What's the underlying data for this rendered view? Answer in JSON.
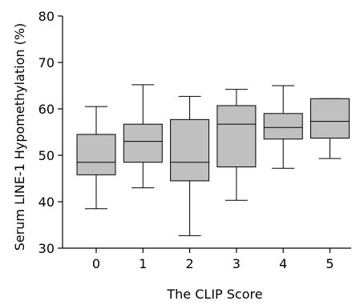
{
  "chart_data": {
    "type": "box",
    "title": "",
    "xlabel": "The CLIP Score",
    "ylabel": "Serum LINE-1 Hypomethylation (%)",
    "categories": [
      "0",
      "1",
      "2",
      "3",
      "4",
      "5"
    ],
    "boxes": [
      {
        "category": "0",
        "whisker_low": 38.5,
        "q1": 45.8,
        "median": 48.5,
        "q3": 54.5,
        "whisker_high": 60.5
      },
      {
        "category": "1",
        "whisker_low": 43.0,
        "q1": 48.5,
        "median": 53.0,
        "q3": 56.7,
        "whisker_high": 65.2
      },
      {
        "category": "2",
        "whisker_low": 32.7,
        "q1": 44.5,
        "median": 48.5,
        "q3": 57.7,
        "whisker_high": 62.7
      },
      {
        "category": "3",
        "whisker_low": 40.3,
        "q1": 47.5,
        "median": 56.7,
        "q3": 60.7,
        "whisker_high": 64.2
      },
      {
        "category": "4",
        "whisker_low": 47.2,
        "q1": 53.5,
        "median": 56.0,
        "q3": 59.0,
        "whisker_high": 65.0
      },
      {
        "category": "5",
        "whisker_low": 49.3,
        "q1": 53.7,
        "median": 57.3,
        "q3": 62.2,
        "whisker_high": 62.2
      }
    ],
    "y_ticks": [
      30,
      40,
      50,
      60,
      70,
      80
    ],
    "ylim": [
      30,
      80
    ],
    "grid": false,
    "legend": "none",
    "colors": {
      "box_fill": "#c0c0c0",
      "stroke": "#000000"
    }
  }
}
